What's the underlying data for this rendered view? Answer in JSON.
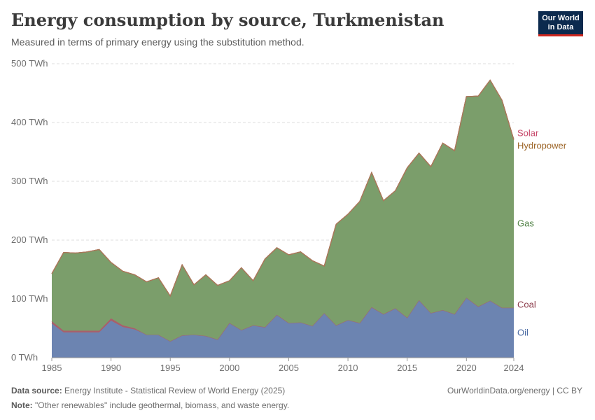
{
  "header": {
    "title": "Energy consumption by source, Turkmenistan",
    "subtitle": "Measured in terms of primary energy using the substitution method."
  },
  "logo": {
    "line1": "Our World",
    "line2": "in Data"
  },
  "footer": {
    "source_label": "Data source:",
    "source_text": "Energy Institute - Statistical Review of World Energy (2025)",
    "note_label": "Note:",
    "note_text": "\"Other renewables\" include geothermal, biomass, and waste energy.",
    "credit": "OurWorldinData.org/energy | CC BY"
  },
  "chart_data": {
    "type": "area",
    "stacked": true,
    "x_label": "",
    "y_label": "",
    "ylim": [
      0,
      500
    ],
    "y_ticks": [
      0,
      100,
      200,
      300,
      400,
      500
    ],
    "y_tick_labels": [
      "0 TWh",
      "100 TWh",
      "200 TWh",
      "300 TWh",
      "400 TWh",
      "500 TWh"
    ],
    "x_ticks": [
      1985,
      1990,
      1995,
      2000,
      2005,
      2010,
      2015,
      2020,
      2024
    ],
    "grid": "horizontal dashed",
    "x": [
      1985,
      1986,
      1987,
      1988,
      1989,
      1990,
      1991,
      1992,
      1993,
      1994,
      1995,
      1996,
      1997,
      1998,
      1999,
      2000,
      2001,
      2002,
      2003,
      2004,
      2005,
      2006,
      2007,
      2008,
      2009,
      2010,
      2011,
      2012,
      2013,
      2014,
      2015,
      2016,
      2017,
      2018,
      2019,
      2020,
      2021,
      2022,
      2023,
      2024
    ],
    "series": [
      {
        "name": "Oil",
        "color": "#6c84b1",
        "label_color": "#4a6aa3",
        "values": [
          58,
          43,
          43,
          43,
          43,
          63,
          52,
          48,
          39,
          39,
          28,
          38,
          39,
          37,
          31,
          59,
          47,
          55,
          52,
          73,
          59,
          60,
          54,
          76,
          55,
          64,
          59,
          86,
          74,
          84,
          68,
          98,
          76,
          81,
          74,
          102,
          87,
          97,
          85,
          85
        ]
      },
      {
        "name": "Coal",
        "color": "#a8606a",
        "label_color": "#8b3a49",
        "values": [
          4,
          3,
          3,
          3,
          3,
          4,
          3,
          2,
          0,
          0,
          0,
          0,
          0,
          0,
          0,
          0,
          0,
          0,
          0,
          0,
          0,
          0,
          0,
          0,
          0,
          0,
          0,
          0,
          0,
          0,
          0,
          0,
          0,
          0,
          0,
          0,
          0,
          0,
          0,
          0
        ]
      },
      {
        "name": "Gas",
        "color": "#7b9e6b",
        "label_color": "#538448",
        "values": [
          81,
          133,
          132,
          134,
          138,
          95,
          92,
          91,
          90,
          97,
          77,
          120,
          85,
          104,
          92,
          72,
          106,
          76,
          116,
          114,
          116,
          120,
          111,
          80,
          172,
          180,
          207,
          229,
          193,
          200,
          255,
          250,
          249,
          284,
          278,
          342,
          358,
          375,
          353,
          286
        ]
      },
      {
        "name": "Hydropower",
        "color": "#a77737",
        "label_color": "#9c6426",
        "values": [
          0,
          0,
          0,
          0,
          0,
          0,
          0,
          0,
          0,
          0,
          0,
          0,
          0,
          0,
          0,
          0,
          0,
          0,
          0,
          0,
          0,
          0,
          0,
          0,
          0,
          0,
          0,
          0,
          0,
          0,
          0,
          0,
          0,
          0,
          0,
          0,
          0,
          0,
          0,
          0
        ]
      },
      {
        "name": "Solar",
        "color": "#c7486a",
        "label_color": "#c7486a",
        "values": [
          0,
          0,
          0,
          0,
          0,
          0,
          0,
          0,
          0,
          0,
          0,
          0,
          0,
          0,
          0,
          0,
          0,
          0,
          0,
          0,
          0,
          0,
          0,
          0,
          0,
          0,
          0,
          0,
          0,
          0,
          0,
          0,
          0,
          0,
          0,
          0,
          0,
          0,
          0,
          0
        ]
      }
    ]
  }
}
